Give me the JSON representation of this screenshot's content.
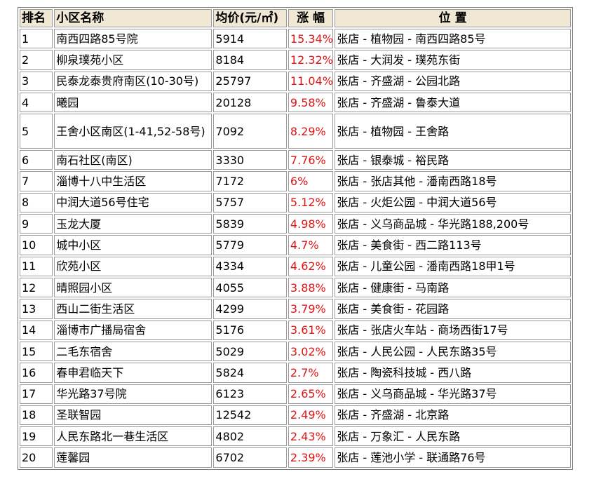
{
  "table": {
    "headers": {
      "rank": "排名",
      "name": "小区名称",
      "price": "均价(元/㎡)",
      "change": "涨 幅",
      "location": "位 置"
    },
    "rows": [
      {
        "rank": "1",
        "name": "南西四路85号院",
        "price": "5914",
        "change": "15.34%",
        "location": "张店 - 植物园 - 南西四路85号"
      },
      {
        "rank": "2",
        "name": "柳泉璞苑小区",
        "price": "8184",
        "change": "12.32%",
        "location": "张店 - 大润发 - 璞苑东街"
      },
      {
        "rank": "3",
        "name": "民泰龙泰贵府南区(10-30号)",
        "price": "25797",
        "change": "11.04%",
        "location": "张店 - 齐盛湖 - 公园北路"
      },
      {
        "rank": "4",
        "name": "曦园",
        "price": "20128",
        "change": "9.58%",
        "location": "张店 - 齐盛湖 - 鲁泰大道"
      },
      {
        "rank": "5",
        "name": "王舍小区南区(1-41,52-58号)",
        "price": "7092",
        "change": "8.29%",
        "location": "张店 - 植物园 - 王舍路"
      },
      {
        "rank": "6",
        "name": "南石社区(南区)",
        "price": "3330",
        "change": "7.76%",
        "location": "张店 - 银泰城 - 裕民路"
      },
      {
        "rank": "7",
        "name": "淄博十八中生活区",
        "price": "7172",
        "change": "6%",
        "location": "张店 - 张店其他 - 潘南西路18号"
      },
      {
        "rank": "8",
        "name": "中润大道56号住宅",
        "price": "5757",
        "change": "5.12%",
        "location": "张店 - 火炬公园 - 中润大道56号"
      },
      {
        "rank": "9",
        "name": "玉龙大厦",
        "price": "5839",
        "change": "4.98%",
        "location": "张店 - 义乌商品城 - 华光路188,200号"
      },
      {
        "rank": "10",
        "name": "城中小区",
        "price": "5779",
        "change": "4.7%",
        "location": "张店 - 美食街 - 西二路113号"
      },
      {
        "rank": "11",
        "name": "欣苑小区",
        "price": "4334",
        "change": "4.62%",
        "location": "张店 - 儿童公园 - 潘南西路18甲1号"
      },
      {
        "rank": "12",
        "name": "晴照园小区",
        "price": "4055",
        "change": "3.88%",
        "location": "张店 - 健康街 - 马南路"
      },
      {
        "rank": "13",
        "name": "西山二街生活区",
        "price": "4299",
        "change": "3.79%",
        "location": "张店 - 美食街 - 花园路"
      },
      {
        "rank": "14",
        "name": "淄博市广播局宿舍",
        "price": "5176",
        "change": "3.61%",
        "location": "张店 - 张店火车站 - 商场西街17号"
      },
      {
        "rank": "15",
        "name": "二毛东宿舍",
        "price": "5029",
        "change": "3.02%",
        "location": "张店 - 人民公园 - 人民东路35号"
      },
      {
        "rank": "16",
        "name": "春申君临天下",
        "price": "5824",
        "change": "2.7%",
        "location": "张店 - 陶瓷科技城 - 西八路"
      },
      {
        "rank": "17",
        "name": "华光路37号院",
        "price": "6123",
        "change": "2.65%",
        "location": "张店 - 义乌商品城 - 华光路37号"
      },
      {
        "rank": "18",
        "name": "圣联智园",
        "price": "12542",
        "change": "2.49%",
        "location": "张店 - 齐盛湖 - 北京路"
      },
      {
        "rank": "19",
        "name": "人民东路北一巷生活区",
        "price": "4802",
        "change": "2.43%",
        "location": "张店 - 万象汇 - 人民东路"
      },
      {
        "rank": "20",
        "name": "莲馨园",
        "price": "6702",
        "change": "2.39%",
        "location": "张店 - 莲池小学 - 联通路76号"
      }
    ]
  },
  "colors": {
    "header_bg": "#f0e8d5",
    "rise_text": "#e01414",
    "border": "#9a9a9a"
  }
}
